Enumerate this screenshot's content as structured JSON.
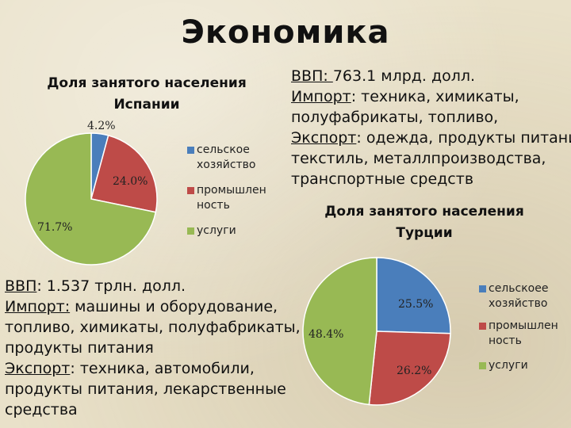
{
  "title": "Экономика",
  "legend_labels": {
    "agri_spain": "сельское хозяйство",
    "agri_turkey": "сельскоее хозяйство",
    "industry": "промышлен ность",
    "services": "услуги"
  },
  "colors": {
    "agriculture": "#4a7ebb",
    "industry": "#be4b48",
    "services": "#98b954"
  },
  "spain": {
    "gdp_label": "ВВП",
    "gdp_text": ":  1.537 трлн. долл.",
    "import_label": "Импорт:",
    "import_lines": [
      " машины и оборудование,",
      "топливо, химикаты, полуфабрикаты,",
      "продукты питания"
    ],
    "export_label": "Экспорт",
    "export_lines": [
      ": техника, автомобили,",
      "продукты питания, лекарственные",
      "средства"
    ]
  },
  "turkey": {
    "gdp_label": "ВВП: ",
    "gdp_text": "763.1 млрд. долл.",
    "import_label": "Импорт",
    "import_lines": [
      ": техника, химикаты,",
      "полуфабрикаты, топливо,"
    ],
    "export_label": "Экспорт",
    "export_lines": [
      ": одежда, продукты питания",
      "текстиль, металлпроизводства,",
      "транспортные средств"
    ]
  },
  "chart_data": [
    {
      "type": "pie",
      "title": "Доля занятого населения Испании",
      "categories": [
        "сельское хозяйство",
        "промышлен ность",
        "услуги"
      ],
      "values": [
        4.2,
        24.0,
        71.7
      ],
      "data_labels": [
        "4.2%",
        "24.0%",
        "71.7%"
      ],
      "legend": "right"
    },
    {
      "type": "pie",
      "title": "Доля занятого населения Турции",
      "categories": [
        "сельскоее хозяйство",
        "промышлен ность",
        "услуги"
      ],
      "values": [
        25.5,
        26.2,
        48.4
      ],
      "data_labels": [
        "25.5%",
        "26.2%",
        "48.4%"
      ],
      "legend": "right"
    }
  ]
}
